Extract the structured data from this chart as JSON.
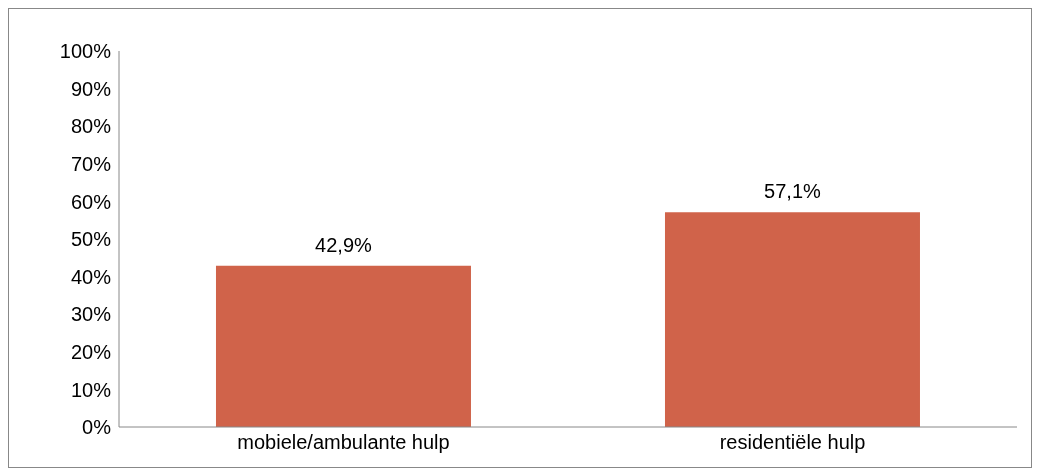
{
  "chart_data": {
    "type": "bar",
    "categories": [
      "mobiele/ambulante hulp",
      "residentiële hulp"
    ],
    "values": [
      42.9,
      57.1
    ],
    "color": "#d0634a",
    "value_labels": [
      "42,9%",
      "57,1%"
    ],
    "ylim": [
      0,
      100
    ],
    "yticks": [
      {
        "value": 0,
        "label": "0%"
      },
      {
        "value": 10,
        "label": "10%"
      },
      {
        "value": 20,
        "label": "20%"
      },
      {
        "value": 30,
        "label": "30%"
      },
      {
        "value": 40,
        "label": "40%"
      },
      {
        "value": 50,
        "label": "50%"
      },
      {
        "value": 60,
        "label": "60%"
      },
      {
        "value": 70,
        "label": "70%"
      },
      {
        "value": 80,
        "label": "80%"
      },
      {
        "value": 90,
        "label": "90%"
      },
      {
        "value": 100,
        "label": "100%"
      }
    ],
    "grid": false
  }
}
